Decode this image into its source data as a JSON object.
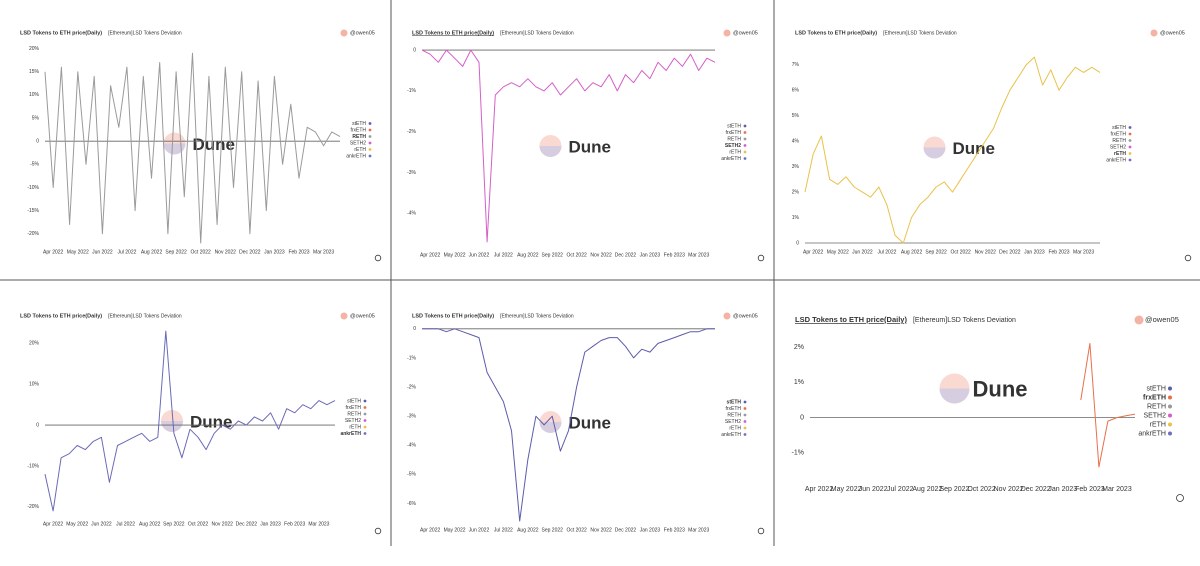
{
  "chart_data": [
    {
      "type": "line",
      "title": "LSD Tokens to ETH price(Daily)",
      "subtitle": "[Ethereum]LSD Tokens Deviation",
      "author": "@owen05",
      "watermark": "Dune",
      "categories": [
        null,
        "Apr 2022",
        null,
        null,
        "May 2022",
        null,
        null,
        "Jun 2022",
        null,
        null,
        "Jul 2022",
        null,
        null,
        "Aug 2022",
        null,
        null,
        "Sep 2022",
        null,
        null,
        "Oct 2022",
        null,
        null,
        "Nov 2022",
        null,
        null,
        "Dec 2022",
        null,
        null,
        "Jan 2023",
        null,
        null,
        "Feb 2023",
        null,
        null,
        "Mar 2023",
        null,
        null
      ],
      "line_color": "#9a9a9a",
      "values": [
        15,
        -10,
        16,
        -18,
        15,
        -5,
        14,
        -20,
        12,
        3,
        16,
        -15,
        14,
        -8,
        17,
        -20,
        15,
        -12,
        19,
        -22,
        14,
        -18,
        16,
        -10,
        15,
        -20,
        13,
        -15,
        14,
        -5,
        8,
        -8,
        3,
        2,
        -1,
        2,
        1
      ],
      "legend": [
        {
          "name": "stETH",
          "color": "#5c5cab"
        },
        {
          "name": "frxETH",
          "color": "#e8704a"
        },
        {
          "name": "RETH",
          "color": "#9a9a9a"
        },
        {
          "name": "SETH2",
          "color": "#d45fc9"
        },
        {
          "name": "rETH",
          "color": "#e8c24a"
        },
        {
          "name": "ankrETH",
          "color": "#7070c0"
        }
      ],
      "highlight": 2,
      "ylim": [
        -22,
        21
      ],
      "yticks": [
        {
          "value": 20,
          "label": "20%"
        },
        {
          "value": 15,
          "label": "15%"
        },
        {
          "value": 10,
          "label": "10%"
        },
        {
          "value": 5,
          "label": "5%"
        },
        0,
        {
          "value": -5,
          "label": "-5%"
        },
        {
          "value": -10,
          "label": "-10%"
        },
        {
          "value": -15,
          "label": "-15%"
        },
        {
          "value": -20,
          "label": "-20%"
        }
      ]
    },
    {
      "type": "line",
      "title": "LSD Tokens to ETH price(Daily)",
      "subtitle": "[Ethereum]LSD Tokens Deviation",
      "author": "@owen05",
      "watermark": "Dune",
      "categories": [
        null,
        "Apr 2022",
        null,
        null,
        "May 2022",
        null,
        null,
        "Jun 2022",
        null,
        null,
        "Jul 2022",
        null,
        null,
        "Aug 2022",
        null,
        null,
        "Sep 2022",
        null,
        null,
        "Oct 2022",
        null,
        null,
        "Nov 2022",
        null,
        null,
        "Dec 2022",
        null,
        null,
        "Jan 2023",
        null,
        null,
        "Feb 2023",
        null,
        null,
        "Mar 2023",
        null,
        null
      ],
      "line_color": "#d45fc9",
      "values": [
        0,
        -0.1,
        -0.3,
        0,
        -0.2,
        -0.4,
        0,
        -0.3,
        -4.7,
        -1.1,
        -0.9,
        -0.8,
        -0.9,
        -0.7,
        -0.9,
        -1.0,
        -0.8,
        -1.1,
        -0.9,
        -0.7,
        -1.0,
        -0.8,
        -0.9,
        -0.6,
        -1.0,
        -0.6,
        -0.8,
        -0.5,
        -0.7,
        -0.3,
        -0.5,
        -0.2,
        -0.4,
        -0.1,
        -0.5,
        -0.2,
        -0.3
      ],
      "legend": [
        {
          "name": "stETH",
          "color": "#5c5cab"
        },
        {
          "name": "frxETH",
          "color": "#e8704a"
        },
        {
          "name": "RETH",
          "color": "#9a9a9a"
        },
        {
          "name": "SETH2",
          "color": "#d45fc9"
        },
        {
          "name": "rETH",
          "color": "#e8c24a"
        },
        {
          "name": "ankrETH",
          "color": "#7070c0"
        }
      ],
      "highlight": 3,
      "ylim": [
        -4.8,
        0.1
      ],
      "yticks": [
        0,
        {
          "value": -1,
          "label": "-1%"
        },
        {
          "value": -2,
          "label": "-2%"
        },
        {
          "value": -3,
          "label": "-3%"
        },
        {
          "value": -4,
          "label": "-4%"
        }
      ]
    },
    {
      "type": "line",
      "title": "LSD Tokens to ETH price(Daily)",
      "subtitle": "[Ethereum]LSD Tokens Deviation",
      "author": "@owen05",
      "watermark": "Dune",
      "categories": [
        null,
        "Apr 2022",
        null,
        null,
        "May 2022",
        null,
        null,
        "Jun 2022",
        null,
        null,
        "Jul 2022",
        null,
        null,
        "Aug 2022",
        null,
        null,
        "Sep 2022",
        null,
        null,
        "Oct 2022",
        null,
        null,
        "Nov 2022",
        null,
        null,
        "Dec 2022",
        null,
        null,
        "Jan 2023",
        null,
        null,
        "Feb 2023",
        null,
        null,
        "Mar 2023",
        null,
        null
      ],
      "line_color": "#e8c24a",
      "values": [
        2.0,
        3.5,
        4.2,
        2.5,
        2.3,
        2.6,
        2.2,
        2.0,
        1.8,
        2.2,
        1.5,
        0.3,
        0,
        1.0,
        1.5,
        1.8,
        2.2,
        2.4,
        2.0,
        2.5,
        3.0,
        3.5,
        4.0,
        4.5,
        5.3,
        6.0,
        6.5,
        7.0,
        7.3,
        6.2,
        6.8,
        6.0,
        6.5,
        6.9,
        6.7,
        6.9,
        6.7
      ],
      "legend": [
        {
          "name": "stETH",
          "color": "#5c5cab"
        },
        {
          "name": "frxETH",
          "color": "#e8704a"
        },
        {
          "name": "RETH",
          "color": "#9a9a9a"
        },
        {
          "name": "SETH2",
          "color": "#d45fc9"
        },
        {
          "name": "rETH",
          "color": "#e8c24a"
        },
        {
          "name": "ankrETH",
          "color": "#7070c0"
        }
      ],
      "highlight": 4,
      "ylim": [
        0,
        7.5
      ],
      "yticks": [
        {
          "value": 7,
          "label": "7%"
        },
        {
          "value": 6,
          "label": "6%"
        },
        {
          "value": 5,
          "label": "5%"
        },
        {
          "value": 4,
          "label": "4%"
        },
        {
          "value": 3,
          "label": "3%"
        },
        {
          "value": 2,
          "label": "2%"
        },
        {
          "value": 1,
          "label": "1%"
        },
        0
      ]
    },
    {
      "type": "line",
      "title": "LSD Tokens to ETH price(Daily)",
      "subtitle": "[Ethereum]LSD Tokens Deviation",
      "author": "@owen05",
      "watermark": "Dune",
      "categories": [
        null,
        "Apr 2022",
        null,
        null,
        "May 2022",
        null,
        null,
        "Jun 2022",
        null,
        null,
        "Jul 2022",
        null,
        null,
        "Aug 2022",
        null,
        null,
        "Sep 2022",
        null,
        null,
        "Oct 2022",
        null,
        null,
        "Nov 2022",
        null,
        null,
        "Dec 2022",
        null,
        null,
        "Jan 2023",
        null,
        null,
        "Feb 2023",
        null,
        null,
        "Mar 2023",
        null,
        null
      ],
      "line_color": "#6a6ab8",
      "values": [
        -12,
        -21,
        -8,
        -7,
        -5,
        -6,
        -4,
        -3,
        -14,
        -5,
        -4,
        -3,
        -2,
        -4,
        -3,
        23,
        -2,
        -8,
        -1,
        -3,
        -6,
        -2,
        0,
        -1,
        1,
        0,
        2,
        1,
        3,
        -1,
        4,
        3,
        5,
        4,
        6,
        5,
        6
      ],
      "legend": [
        {
          "name": "stETH",
          "color": "#5c5cab"
        },
        {
          "name": "frxETH",
          "color": "#e8704a"
        },
        {
          "name": "RETH",
          "color": "#9a9a9a"
        },
        {
          "name": "SETH2",
          "color": "#d45fc9"
        },
        {
          "name": "rETH",
          "color": "#e8c24a"
        },
        {
          "name": "ankrETH",
          "color": "#7070c0"
        }
      ],
      "highlight": 5,
      "ylim": [
        -22,
        24
      ],
      "yticks": [
        {
          "value": 20,
          "label": "20%"
        },
        {
          "value": 10,
          "label": "10%"
        },
        0,
        {
          "value": -10,
          "label": "-10%"
        },
        {
          "value": -20,
          "label": "-20%"
        }
      ]
    },
    {
      "type": "line",
      "title": "LSD Tokens to ETH price(Daily)",
      "subtitle": "[Ethereum]LSD Tokens Deviation",
      "author": "@owen05",
      "watermark": "Dune",
      "categories": [
        null,
        "Apr 2022",
        null,
        null,
        "May 2022",
        null,
        null,
        "Jun 2022",
        null,
        null,
        "Jul 2022",
        null,
        null,
        "Aug 2022",
        null,
        null,
        "Sep 2022",
        null,
        null,
        "Oct 2022",
        null,
        null,
        "Nov 2022",
        null,
        null,
        "Dec 2022",
        null,
        null,
        "Jan 2023",
        null,
        null,
        "Feb 2023",
        null,
        null,
        "Mar 2023",
        null,
        null
      ],
      "line_color": "#5c5cab",
      "values": [
        0,
        0,
        0,
        -0.1,
        0,
        -0.1,
        -0.2,
        -0.3,
        -1.5,
        -2.0,
        -2.5,
        -3.5,
        -6.6,
        -4.5,
        -3.0,
        -3.3,
        -3.0,
        -4.2,
        -3.5,
        -2.0,
        -0.8,
        -0.6,
        -0.4,
        -0.3,
        -0.3,
        -0.6,
        -1.0,
        -0.7,
        -0.8,
        -0.5,
        -0.4,
        -0.3,
        -0.2,
        -0.1,
        -0.1,
        0,
        0
      ],
      "legend": [
        {
          "name": "stETH",
          "color": "#5c5cab"
        },
        {
          "name": "frxETH",
          "color": "#e8704a"
        },
        {
          "name": "RETH",
          "color": "#9a9a9a"
        },
        {
          "name": "SETH2",
          "color": "#d45fc9"
        },
        {
          "name": "rETH",
          "color": "#e8c24a"
        },
        {
          "name": "ankrETH",
          "color": "#7070c0"
        }
      ],
      "highlight": 0,
      "ylim": [
        -6.6,
        0.2
      ],
      "yticks": [
        0,
        {
          "value": -1,
          "label": "-1%"
        },
        {
          "value": -2,
          "label": "-2%"
        },
        {
          "value": -3,
          "label": "-3%"
        },
        {
          "value": -4,
          "label": "-4%"
        },
        {
          "value": -5,
          "label": "-5%"
        },
        {
          "value": -6,
          "label": "-6%"
        }
      ]
    },
    {
      "type": "line",
      "title": "LSD Tokens to ETH price(Daily)",
      "subtitle": "[Ethereum]LSD Tokens Deviation",
      "author": "@owen05",
      "watermark": "Dune",
      "categories": [
        null,
        "Apr 2022",
        null,
        null,
        "May 2022",
        null,
        null,
        "Jun 2022",
        null,
        null,
        "Jul 2022",
        null,
        null,
        "Aug 2022",
        null,
        null,
        "Sep 2022",
        null,
        null,
        "Oct 2022",
        null,
        null,
        "Nov 2022",
        null,
        null,
        "Dec 2022",
        null,
        null,
        "Jan 2023",
        null,
        null,
        "Feb 2023",
        null,
        null,
        "Mar 2023",
        null,
        null
      ],
      "line_color": "#e8704a",
      "values": [
        null,
        null,
        null,
        null,
        null,
        null,
        null,
        null,
        null,
        null,
        null,
        null,
        null,
        null,
        null,
        null,
        null,
        null,
        null,
        null,
        null,
        null,
        null,
        null,
        null,
        null,
        null,
        null,
        null,
        null,
        0.5,
        2.1,
        -1.4,
        -0.1,
        0,
        0.05,
        0.1
      ],
      "legend": [
        {
          "name": "stETH",
          "color": "#5c5cab"
        },
        {
          "name": "frxETH",
          "color": "#e8704a"
        },
        {
          "name": "RETH",
          "color": "#9a9a9a"
        },
        {
          "name": "SETH2",
          "color": "#d45fc9"
        },
        {
          "name": "rETH",
          "color": "#e8c24a"
        },
        {
          "name": "ankrETH",
          "color": "#7070c0"
        }
      ],
      "highlight": 1,
      "ylim": [
        -1.4,
        2.2
      ],
      "yticks": [
        {
          "value": 2,
          "label": "2%"
        },
        {
          "value": 1,
          "label": "1%"
        },
        0,
        {
          "value": -1,
          "label": "-1%"
        }
      ]
    }
  ]
}
